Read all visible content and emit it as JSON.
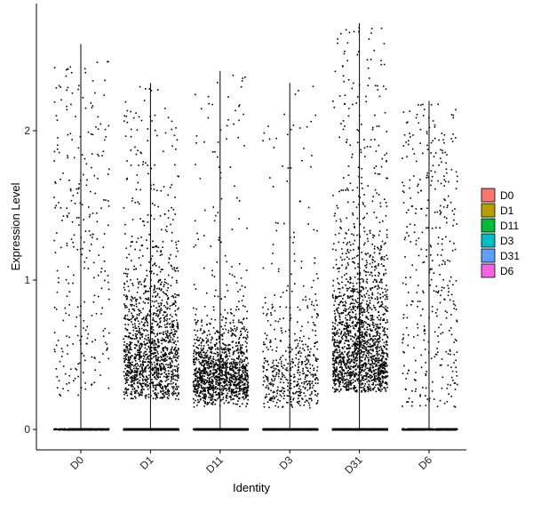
{
  "chart_data": {
    "type": "scatter",
    "subtype": "violin-jitter",
    "title": "",
    "xlabel": "Identity",
    "ylabel": "Expression Level",
    "categories": [
      "D0",
      "D1",
      "D11",
      "D3",
      "D31",
      "D6"
    ],
    "ylim": [
      -0.15,
      2.85
    ],
    "yticks": [
      0,
      1,
      2
    ],
    "grid": false,
    "legend": {
      "placement": "right",
      "entries": [
        {
          "label": "D0",
          "color": "#F8766D"
        },
        {
          "label": "D1",
          "color": "#B79F00"
        },
        {
          "label": "D11",
          "color": "#00BA38"
        },
        {
          "label": "D3",
          "color": "#00BFC4"
        },
        {
          "label": "D31",
          "color": "#619CFF"
        },
        {
          "label": "D6",
          "color": "#F564E3"
        }
      ]
    },
    "point_color": "#000000",
    "groups": [
      {
        "name": "D0",
        "max": 2.58,
        "zero_count": 500,
        "nonzero_count": 280,
        "nonzero_range": [
          0.22,
          2.48
        ],
        "nonzero_mode": 0.8,
        "nonzero_shape": "uniform"
      },
      {
        "name": "D1",
        "max": 2.32,
        "zero_count": 1200,
        "nonzero_count": 1400,
        "nonzero_range": [
          0.2,
          2.3
        ],
        "nonzero_mode": 0.45,
        "nonzero_shape": "right-skewed"
      },
      {
        "name": "D11",
        "max": 2.4,
        "zero_count": 1200,
        "nonzero_count": 1300,
        "nonzero_range": [
          0.15,
          2.38
        ],
        "nonzero_mode": 0.35,
        "nonzero_shape": "right-skewed-strong"
      },
      {
        "name": "D3",
        "max": 2.32,
        "zero_count": 900,
        "nonzero_count": 520,
        "nonzero_range": [
          0.14,
          2.3
        ],
        "nonzero_mode": 0.35,
        "nonzero_shape": "right-skewed"
      },
      {
        "name": "D31",
        "max": 2.72,
        "zero_count": 900,
        "nonzero_count": 1800,
        "nonzero_range": [
          0.25,
          2.7
        ],
        "nonzero_mode": 0.5,
        "nonzero_shape": "right-skewed"
      },
      {
        "name": "D6",
        "max": 2.2,
        "zero_count": 600,
        "nonzero_count": 380,
        "nonzero_range": [
          0.15,
          2.18
        ],
        "nonzero_mode": 0.4,
        "nonzero_shape": "uniform"
      }
    ]
  }
}
